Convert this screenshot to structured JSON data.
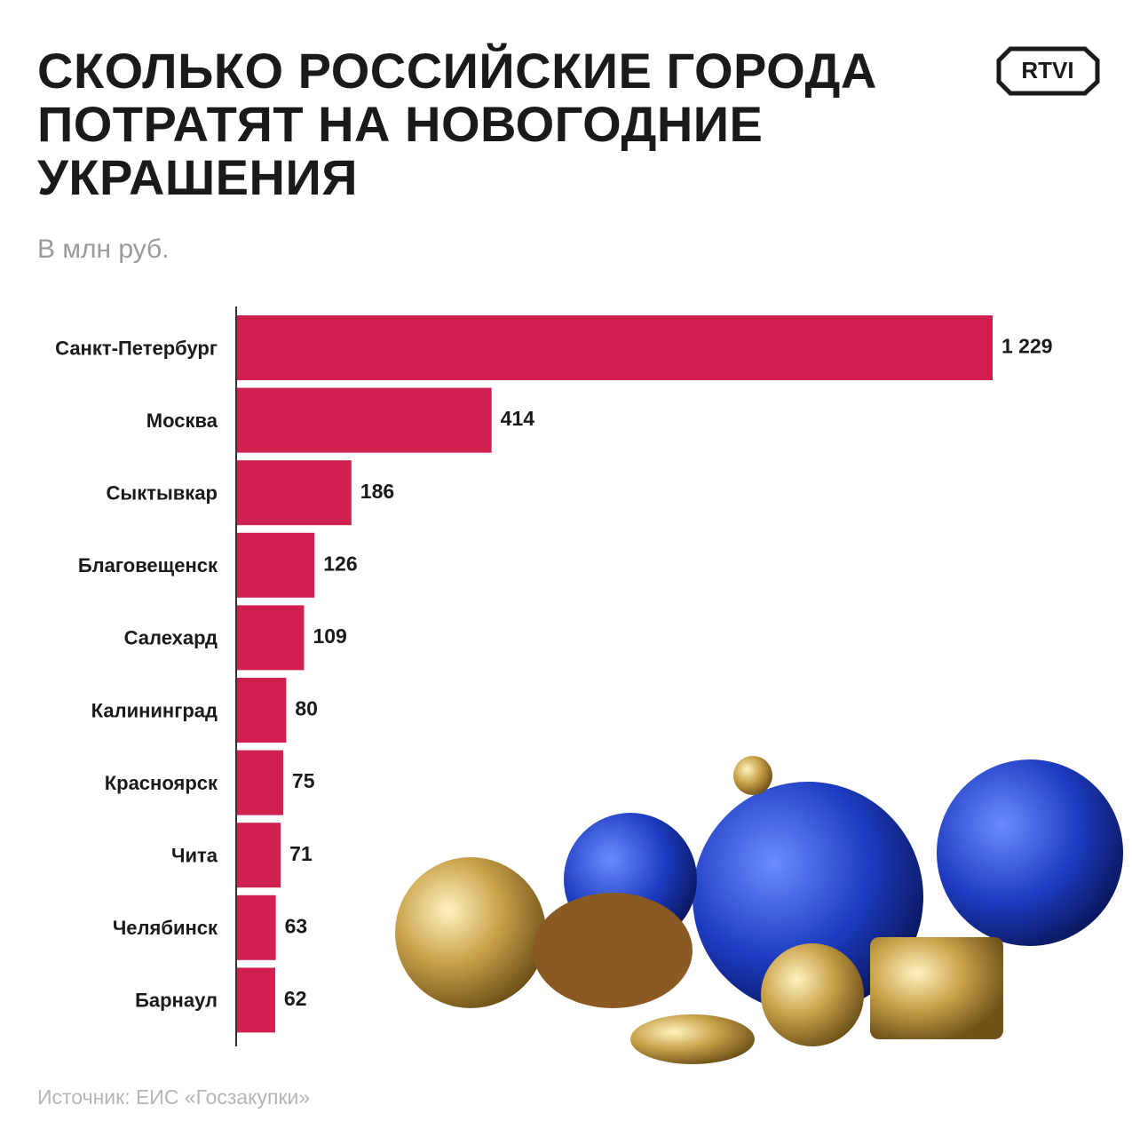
{
  "logo": "RTVI",
  "chart_data": {
    "type": "barh",
    "title": "СКОЛЬКО РОССИЙСКИЕ ГОРОДА ПОТРАТЯТ НА НОВОГОДНИЕ УКРАШЕНИЯ",
    "subtitle": "В млн руб.",
    "source": "Источник: ЕИС «Госзакупки»",
    "categories": [
      "Санкт-Петербург",
      "Москва",
      "Сыктывкар",
      "Благовещенск",
      "Салехард",
      "Калининград",
      "Красноярск",
      "Чита",
      "Челябинск",
      "Барнаул"
    ],
    "values": [
      1229,
      414,
      186,
      126,
      109,
      80,
      75,
      71,
      63,
      62
    ],
    "value_labels": [
      "1 229",
      "414",
      "186",
      "126",
      "109",
      "80",
      "75",
      "71",
      "63",
      "62"
    ],
    "color": "#d0204f"
  }
}
